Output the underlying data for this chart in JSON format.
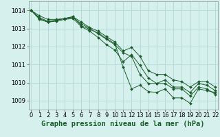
{
  "background_color": "#d6f0ed",
  "grid_color": "#b2d8d2",
  "line_color": "#1a5c2a",
  "marker_color": "#1a5c2a",
  "xlabel": "Graphe pression niveau de la mer (hPa)",
  "xlabel_fontsize": 7.5,
  "tick_fontsize": 6,
  "xlim": [
    -0.3,
    22.3
  ],
  "ylim": [
    1008.5,
    1014.5
  ],
  "yticks": [
    1009,
    1010,
    1011,
    1012,
    1013,
    1014
  ],
  "xticks": [
    0,
    1,
    2,
    3,
    4,
    5,
    6,
    7,
    8,
    9,
    10,
    11,
    12,
    13,
    14,
    15,
    16,
    17,
    18,
    19,
    20,
    21,
    22
  ],
  "series": [
    [
      1014.0,
      1013.7,
      1013.5,
      1013.5,
      1013.55,
      1013.65,
      1013.15,
      1012.95,
      1012.75,
      1012.45,
      1012.15,
      1010.85,
      1009.65,
      1009.85,
      1009.5,
      1009.45,
      1009.65,
      1009.15,
      1009.15,
      1008.85,
      1009.65,
      1009.55,
      1009.45
    ],
    [
      1014.0,
      1013.6,
      1013.4,
      1013.45,
      1013.55,
      1013.6,
      1013.25,
      1013.0,
      1012.7,
      1012.4,
      1012.1,
      1011.65,
      1011.45,
      1010.45,
      1009.95,
      1009.95,
      1010.15,
      1009.75,
      1009.75,
      1009.45,
      1009.95,
      1009.85,
      1009.55
    ],
    [
      1014.0,
      1013.55,
      1013.35,
      1013.45,
      1013.55,
      1013.65,
      1013.35,
      1013.05,
      1012.85,
      1012.55,
      1012.25,
      1011.75,
      1011.95,
      1011.45,
      1010.65,
      1010.45,
      1010.45,
      1010.15,
      1010.05,
      1009.75,
      1010.05,
      1010.05,
      1009.75
    ],
    [
      1014.0,
      1013.5,
      1013.35,
      1013.4,
      1013.5,
      1013.55,
      1013.1,
      1012.85,
      1012.5,
      1012.1,
      1011.8,
      1011.15,
      1011.55,
      1010.95,
      1010.25,
      1009.95,
      1009.95,
      1009.65,
      1009.65,
      1009.25,
      1009.75,
      1009.65,
      1009.35
    ]
  ]
}
